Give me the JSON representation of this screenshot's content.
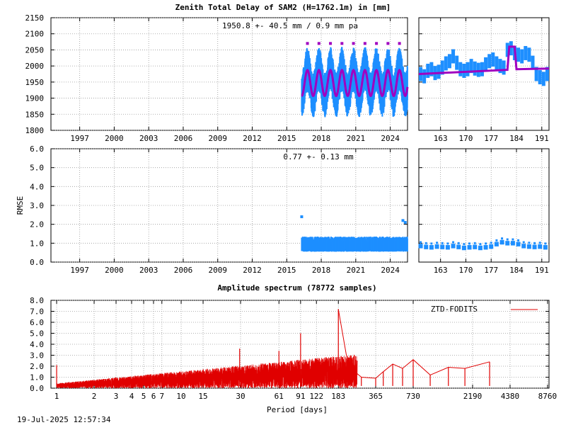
{
  "colors": {
    "series_blue": "#1e8fff",
    "model_purple": "#a000c0",
    "spectrum_red": "#e00000",
    "grid": "#9a9a9a",
    "axis": "#000000"
  },
  "timestamp": "19-Jul-2025 12:57:34",
  "chart_data": [
    {
      "type": "scatter",
      "title": "Zenith Total Delay of SAM2 (H=1762.1m) in [mm]",
      "annotation": "1950.8 +- 40.5 mm / 0.9 mm pa",
      "xlim": [
        1994.5,
        2025.5
      ],
      "ylim": [
        1800,
        2150
      ],
      "x_ticks": [
        "1997",
        "2000",
        "2003",
        "2006",
        "2009",
        "2012",
        "2015",
        "2018",
        "2021",
        "2024"
      ],
      "y_ticks": [
        "1800",
        "1850",
        "1900",
        "1950",
        "2000",
        "2050",
        "2100",
        "2150"
      ],
      "grid": true,
      "series": [
        {
          "type": "band",
          "x_start": 2016.3,
          "x_end": 2025.5,
          "period_years": 1.0,
          "center": 1950,
          "amplitude": 40,
          "upper_extent": 70,
          "lower_extent": 70
        },
        {
          "type": "line",
          "model": "sinusoid",
          "x_start": 2016.3,
          "x_end": 2025.5,
          "center": 1947,
          "amplitude": 40,
          "period_years": 1.0
        }
      ]
    },
    {
      "type": "scatter",
      "xlim": [
        157,
        193
      ],
      "ylim": [
        1800,
        2150
      ],
      "x_ticks": [
        "163",
        "170",
        "177",
        "184",
        "191"
      ],
      "grid": true,
      "series": [
        {
          "type": "points",
          "values": [
            [
              157.5,
              1975
            ],
            [
              158.5,
              1968
            ],
            [
              159.5,
              1985
            ],
            [
              160.5,
              1990
            ],
            [
              161.5,
              1978
            ],
            [
              162.5,
              1982
            ],
            [
              163.5,
              1995
            ],
            [
              164.5,
              2008
            ],
            [
              165.5,
              2015
            ],
            [
              166.5,
              2030
            ],
            [
              167.5,
              2010
            ],
            [
              168.5,
              1990
            ],
            [
              169.5,
              1985
            ],
            [
              170.5,
              1990
            ],
            [
              171.5,
              2000
            ],
            [
              172.5,
              1992
            ],
            [
              173.5,
              1988
            ],
            [
              174.5,
              1990
            ],
            [
              175.5,
              2005
            ],
            [
              176.5,
              2015
            ],
            [
              177.5,
              2020
            ],
            [
              178.5,
              2008
            ],
            [
              179.5,
              2000
            ],
            [
              180.5,
              1995
            ],
            [
              181.5,
              2050
            ],
            [
              182.5,
              2055
            ],
            [
              183.5,
              2040
            ],
            [
              184.5,
              2035
            ],
            [
              185.5,
              2030
            ],
            [
              186.5,
              2040
            ],
            [
              187.5,
              2035
            ],
            [
              188.5,
              2010
            ],
            [
              189.5,
              1975
            ],
            [
              190.5,
              1965
            ],
            [
              191.5,
              1960
            ],
            [
              192.5,
              1975
            ]
          ]
        },
        {
          "type": "line",
          "values": [
            [
              157,
              1975
            ],
            [
              181.5,
              1988
            ],
            [
              182,
              2060
            ],
            [
              183.5,
              2060
            ],
            [
              184,
              1990
            ],
            [
              193,
              1992
            ]
          ]
        }
      ]
    },
    {
      "type": "scatter",
      "ylabel": "RMSE",
      "annotation": "0.77 +- 0.13 mm",
      "xlim": [
        1994.5,
        2025.5
      ],
      "ylim": [
        0.0,
        6.0
      ],
      "x_ticks": [
        "1997",
        "2000",
        "2003",
        "2006",
        "2009",
        "2012",
        "2015",
        "2018",
        "2021",
        "2024"
      ],
      "y_ticks": [
        "0.0",
        "1.0",
        "2.0",
        "3.0",
        "4.0",
        "5.0",
        "6.0"
      ],
      "grid": true,
      "series": [
        {
          "type": "band",
          "x_start": 2016.3,
          "x_end": 2025.5,
          "lower": 0.55,
          "upper": 1.35
        },
        {
          "type": "points",
          "values": [
            [
              2016.3,
              2.4
            ],
            [
              2025.1,
              2.2
            ],
            [
              2025.3,
              2.1
            ]
          ]
        }
      ]
    },
    {
      "type": "scatter",
      "xlim": [
        157,
        193
      ],
      "ylim": [
        0.0,
        6.0
      ],
      "x_ticks": [
        "163",
        "170",
        "177",
        "184",
        "191"
      ],
      "grid": true,
      "series": [
        {
          "type": "points",
          "values": [
            [
              157.5,
              0.85
            ],
            [
              159,
              0.8
            ],
            [
              160.5,
              0.78
            ],
            [
              162,
              0.82
            ],
            [
              163.5,
              0.8
            ],
            [
              165,
              0.78
            ],
            [
              166.5,
              0.85
            ],
            [
              168,
              0.8
            ],
            [
              169.5,
              0.75
            ],
            [
              171,
              0.78
            ],
            [
              172.5,
              0.8
            ],
            [
              174,
              0.75
            ],
            [
              175.5,
              0.78
            ],
            [
              177,
              0.82
            ],
            [
              178.5,
              0.95
            ],
            [
              180,
              1.05
            ],
            [
              181.5,
              1.0
            ],
            [
              183,
              1.0
            ],
            [
              184.5,
              0.95
            ],
            [
              186,
              0.85
            ],
            [
              187.5,
              0.82
            ],
            [
              189,
              0.8
            ],
            [
              190.5,
              0.82
            ],
            [
              192,
              0.78
            ]
          ]
        }
      ]
    },
    {
      "type": "line",
      "title": "Amplitude spectrum (78772 samples)",
      "xlabel": "Period [days]",
      "legend": "ZTD-FODITS",
      "legend_position": "top-right",
      "x_scale": "log",
      "xlim": [
        0.9,
        9000
      ],
      "ylim": [
        0.0,
        8.0
      ],
      "x_ticks": [
        "1",
        "2",
        "3",
        "4",
        "5",
        "6",
        "7",
        "10",
        "15",
        "30",
        "61",
        "91",
        "122",
        "183",
        "365",
        "730",
        "2190",
        "4380",
        "8760"
      ],
      "y_ticks": [
        "0.0",
        "1.0",
        "2.0",
        "3.0",
        "4.0",
        "5.0",
        "6.0",
        "7.0",
        "8.0"
      ],
      "grid": true,
      "peaks": [
        [
          1.0,
          2.1
        ],
        [
          29.5,
          3.6
        ],
        [
          61,
          3.4
        ],
        [
          91,
          5.0
        ],
        [
          122,
          2.2
        ],
        [
          150,
          2.7
        ],
        [
          183,
          7.2
        ],
        [
          220,
          2.0
        ],
        [
          280,
          1.0
        ],
        [
          365,
          0.9
        ],
        [
          420,
          1.5
        ],
        [
          500,
          2.2
        ],
        [
          600,
          1.8
        ],
        [
          730,
          2.6
        ],
        [
          1000,
          1.2
        ],
        [
          1400,
          1.9
        ],
        [
          1900,
          1.8
        ],
        [
          3000,
          2.4
        ]
      ]
    }
  ]
}
